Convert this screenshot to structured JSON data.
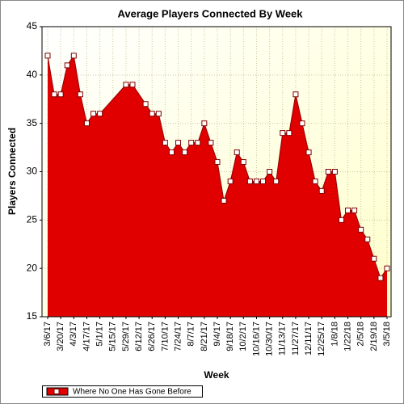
{
  "chart_data": {
    "type": "area",
    "title": "Average Players Connected By Week",
    "xlabel": "Week",
    "ylabel": "Players Connected",
    "x": [
      "3/6/17",
      "3/13/17",
      "3/20/17",
      "3/27/17",
      "4/3/17",
      "4/10/17",
      "4/17/17",
      "4/24/17",
      "5/1/17",
      "5/29/17",
      "6/5/17",
      "6/19/17",
      "6/26/17",
      "7/3/17",
      "7/10/17",
      "7/17/17",
      "7/24/17",
      "7/31/17",
      "8/7/17",
      "8/14/17",
      "8/21/17",
      "8/28/17",
      "9/4/17",
      "9/11/17",
      "9/18/17",
      "9/25/17",
      "10/2/17",
      "10/9/17",
      "10/16/17",
      "10/23/17",
      "10/30/17",
      "11/6/17",
      "11/13/17",
      "11/20/17",
      "11/27/17",
      "12/4/17",
      "12/11/17",
      "12/18/17",
      "12/25/17",
      "1/1/18",
      "1/8/18",
      "1/15/18",
      "1/22/18",
      "1/29/18",
      "2/5/18",
      "2/12/18",
      "2/19/18",
      "2/26/18",
      "3/5/18"
    ],
    "series": [
      {
        "name": "Where No One Has Gone Before",
        "color": "#e00000",
        "values": [
          42,
          38,
          38,
          41,
          42,
          38,
          35,
          36,
          36,
          39,
          39,
          37,
          36,
          36,
          33,
          32,
          33,
          32,
          33,
          33,
          35,
          33,
          31,
          27,
          29,
          32,
          31,
          29,
          29,
          29,
          30,
          29,
          34,
          34,
          38,
          35,
          32,
          29,
          28,
          30,
          30,
          25,
          26,
          26,
          24,
          23,
          21,
          19,
          20
        ]
      }
    ],
    "xlim": [
      "3/6/17",
      "3/5/18"
    ],
    "xticks": [
      "3/6/17",
      "3/20/17",
      "4/3/17",
      "4/17/17",
      "5/1/17",
      "5/15/17",
      "5/29/17",
      "6/12/17",
      "6/26/17",
      "7/10/17",
      "7/24/17",
      "8/7/17",
      "8/21/17",
      "9/4/17",
      "9/18/17",
      "10/2/17",
      "10/16/17",
      "10/30/17",
      "11/13/17",
      "11/27/17",
      "12/11/17",
      "12/25/17",
      "1/8/18",
      "1/22/18",
      "2/5/18",
      "2/19/18",
      "3/5/18"
    ],
    "ylim": [
      15,
      45
    ],
    "yticks": [
      15,
      20,
      25,
      30,
      35,
      40,
      45
    ],
    "grid": true
  }
}
